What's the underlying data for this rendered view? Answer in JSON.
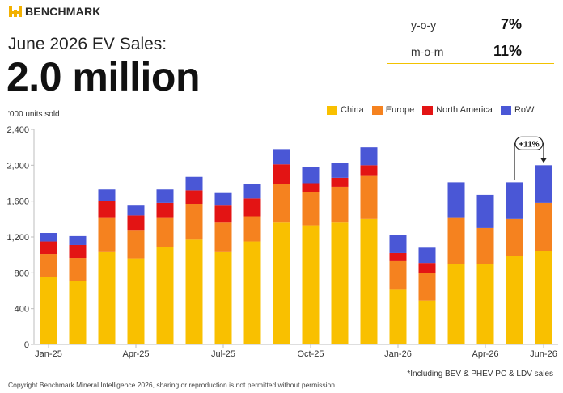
{
  "brand": {
    "name": "BENCHMARK"
  },
  "headline": "June 2026 EV Sales:",
  "big_number": "2.0 million",
  "kpis": [
    {
      "label": "y-o-y",
      "value": "7%"
    },
    {
      "label": "m-o-m",
      "value": "11%"
    }
  ],
  "footnote": "*Including BEV & PHEV PC & LDV sales",
  "copyright": "Copyright Benchmark Mineral Intelligence 2026, sharing or reproduction is not permitted without permission",
  "colors": {
    "China": "#f9c000",
    "Europe": "#f5821f",
    "North America": "#e31414",
    "RoW": "#4a57d6",
    "accent": "#f2c200"
  },
  "chart_data": {
    "type": "bar",
    "stacked": true,
    "ylabel": "'000 units sold",
    "ylim": [
      0,
      2400
    ],
    "yticks": [
      0,
      400,
      800,
      1200,
      1600,
      2000,
      2400
    ],
    "ytick_labels": [
      "0",
      "400",
      "800",
      "1,200",
      "1,600",
      "2,000",
      "2,400"
    ],
    "categories": [
      "Jan-25",
      "Feb-25",
      "Mar-25",
      "Apr-25",
      "May-25",
      "Jun-25",
      "Jul-25",
      "Aug-25",
      "Sep-25",
      "Oct-25",
      "Nov-25",
      "Dec-25",
      "Jan-26",
      "Feb-26",
      "Mar-26",
      "Apr-26",
      "May-26",
      "Jun-26"
    ],
    "shown_x_labels": [
      "Jan-25",
      "Apr-25",
      "Jul-25",
      "Oct-25",
      "Jan-26",
      "Apr-26",
      "Jun-26"
    ],
    "series": [
      {
        "name": "China",
        "values": [
          750,
          710,
          1030,
          960,
          1090,
          1170,
          1030,
          1150,
          1360,
          1330,
          1360,
          1400,
          610,
          490,
          900,
          900,
          990,
          1040
        ]
      },
      {
        "name": "Europe",
        "values": [
          260,
          255,
          390,
          310,
          330,
          400,
          330,
          280,
          430,
          370,
          400,
          480,
          320,
          310,
          520,
          400,
          410,
          540
        ]
      },
      {
        "name": "North America",
        "values": [
          140,
          145,
          180,
          170,
          160,
          150,
          190,
          200,
          220,
          100,
          100,
          120,
          90,
          110,
          0,
          0,
          0,
          0
        ]
      },
      {
        "name": "RoW",
        "values": [
          95,
          100,
          130,
          110,
          150,
          150,
          140,
          160,
          170,
          180,
          170,
          200,
          200,
          170,
          390,
          370,
          410,
          420
        ]
      }
    ],
    "legend_position": "top-right",
    "grid": false,
    "annotation": {
      "text": "+11%",
      "from": "May-26",
      "to": "Jun-26"
    }
  }
}
